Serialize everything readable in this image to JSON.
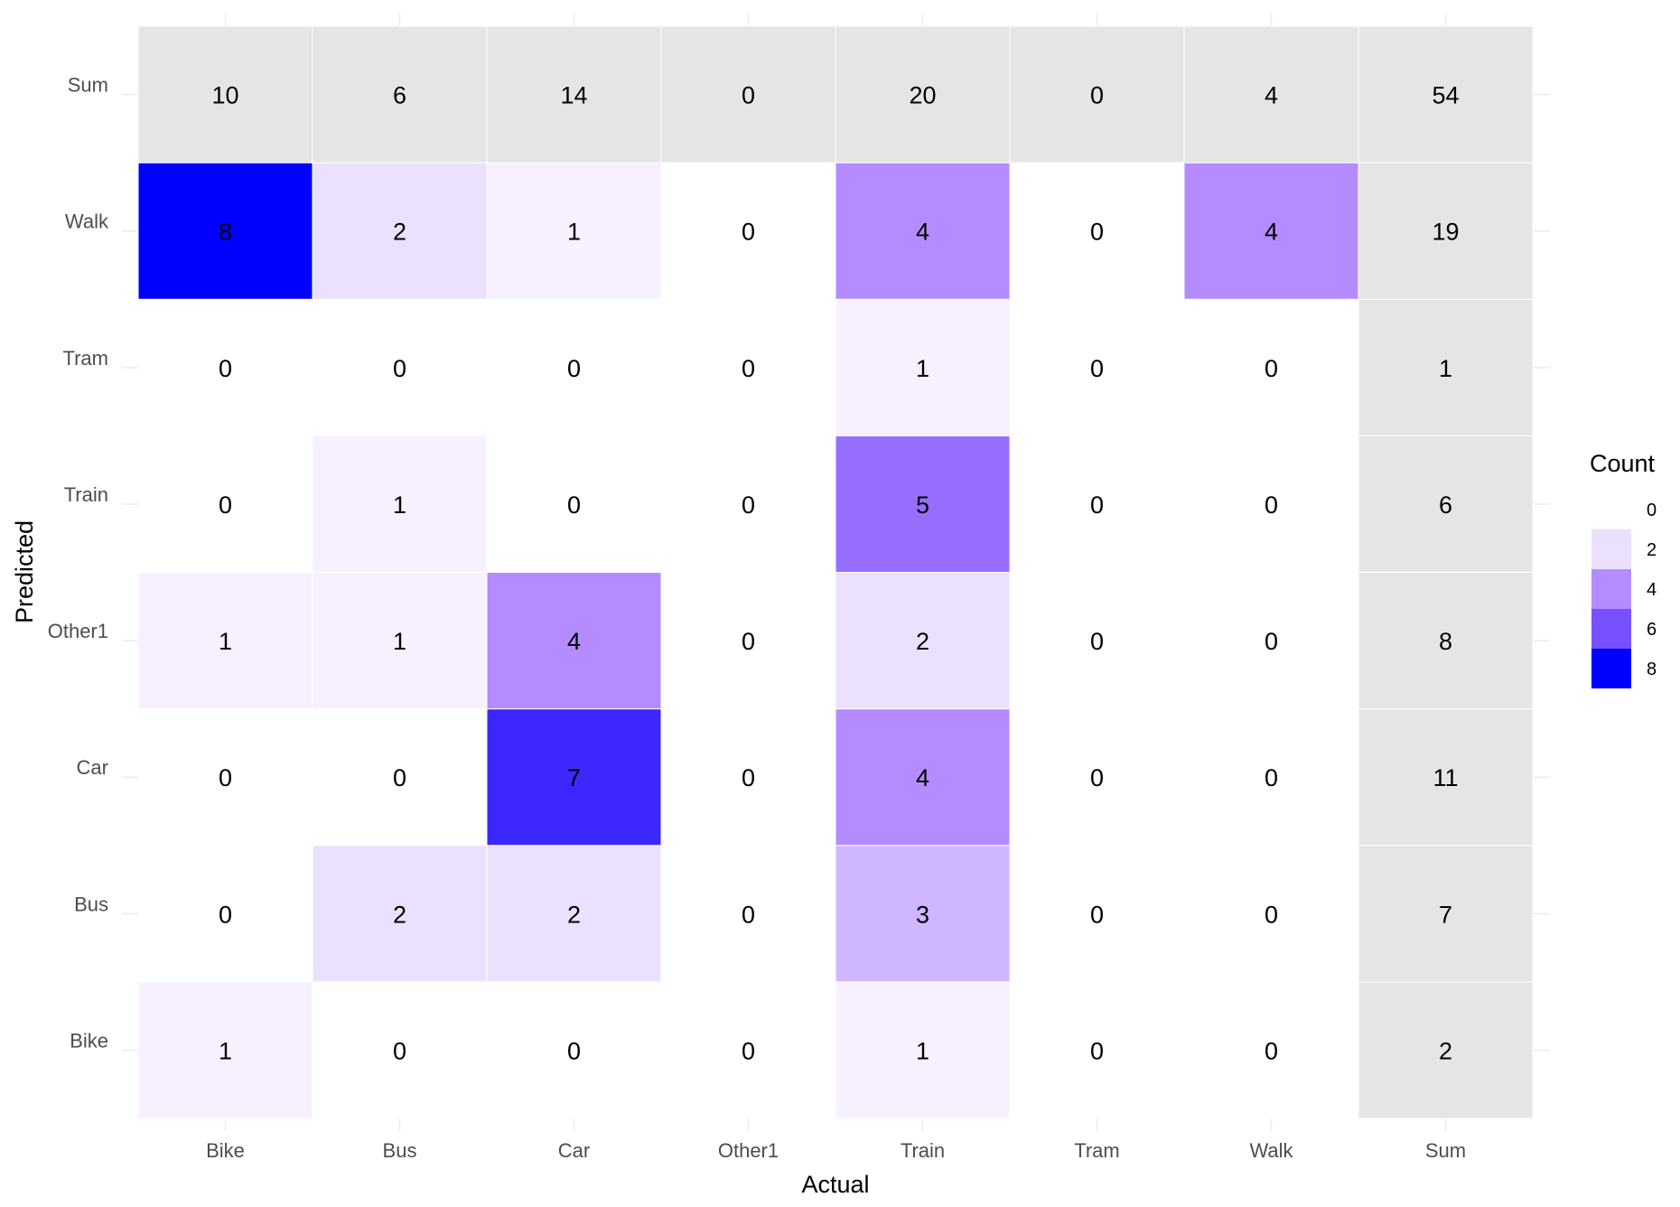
{
  "chart_data": {
    "type": "heatmap",
    "xlabel": "Actual",
    "ylabel": "Predicted",
    "x_categories": [
      "Bike",
      "Bus",
      "Car",
      "Other1",
      "Train",
      "Tram",
      "Walk",
      "Sum"
    ],
    "y_categories": [
      "Bike",
      "Bus",
      "Car",
      "Other1",
      "Train",
      "Tram",
      "Walk",
      "Sum"
    ],
    "matrix": {
      "Sum": [
        10,
        6,
        14,
        0,
        20,
        0,
        4,
        54
      ],
      "Walk": [
        8,
        2,
        1,
        0,
        4,
        0,
        4,
        19
      ],
      "Tram": [
        0,
        0,
        0,
        0,
        1,
        0,
        0,
        1
      ],
      "Train": [
        0,
        1,
        0,
        0,
        5,
        0,
        0,
        6
      ],
      "Other1": [
        1,
        1,
        4,
        0,
        2,
        0,
        0,
        8
      ],
      "Car": [
        0,
        0,
        7,
        0,
        4,
        0,
        0,
        11
      ],
      "Bus": [
        0,
        2,
        2,
        0,
        3,
        0,
        0,
        7
      ],
      "Bike": [
        1,
        0,
        0,
        0,
        1,
        0,
        0,
        2
      ]
    },
    "sum_fill_color": "#e5e5e5",
    "color_scale": {
      "low": "#ffffff",
      "high": "#0000ff",
      "domain": [
        0,
        8
      ]
    },
    "legend": {
      "title": "Count",
      "placement": "right",
      "breaks": [
        0,
        2,
        4,
        6,
        8
      ]
    },
    "grid": true
  }
}
